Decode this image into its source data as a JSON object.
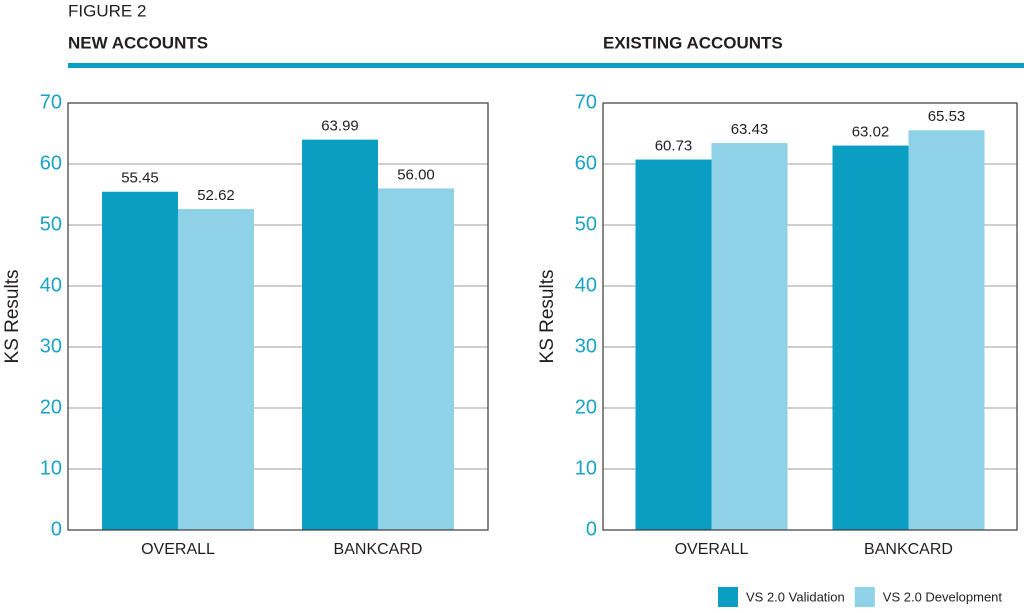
{
  "figure_label": "FIGURE 2",
  "legend": [
    {
      "name": "VS 2.0 Validation",
      "color": "#0a9fc2"
    },
    {
      "name": "VS 2.0 Development",
      "color": "#8fd1e6"
    }
  ],
  "chart_data": [
    {
      "type": "bar",
      "title": "NEW ACCOUNTS",
      "y_label": "KS Results",
      "categories": [
        "OVERALL",
        "BANKCARD"
      ],
      "series": [
        {
          "values": [
            55.45,
            63.99
          ],
          "value_labels": [
            "55.45",
            "63.99"
          ]
        },
        {
          "values": [
            52.62,
            56.0
          ],
          "value_labels": [
            "52.62",
            "56.00"
          ]
        }
      ],
      "ylim": [
        0,
        70
      ],
      "yticks": [
        0,
        10,
        20,
        30,
        40,
        50,
        60,
        70
      ],
      "grid": true
    },
    {
      "type": "bar",
      "title": "EXISTING ACCOUNTS",
      "y_label": "KS Results",
      "categories": [
        "OVERALL",
        "BANKCARD"
      ],
      "series": [
        {
          "values": [
            60.73,
            63.02
          ],
          "value_labels": [
            "60.73",
            "63.02"
          ]
        },
        {
          "values": [
            63.43,
            65.53
          ],
          "value_labels": [
            "63.43",
            "65.53"
          ]
        }
      ],
      "ylim": [
        0,
        70
      ],
      "yticks": [
        0,
        10,
        20,
        30,
        40,
        50,
        60,
        70
      ],
      "grid": true
    }
  ]
}
